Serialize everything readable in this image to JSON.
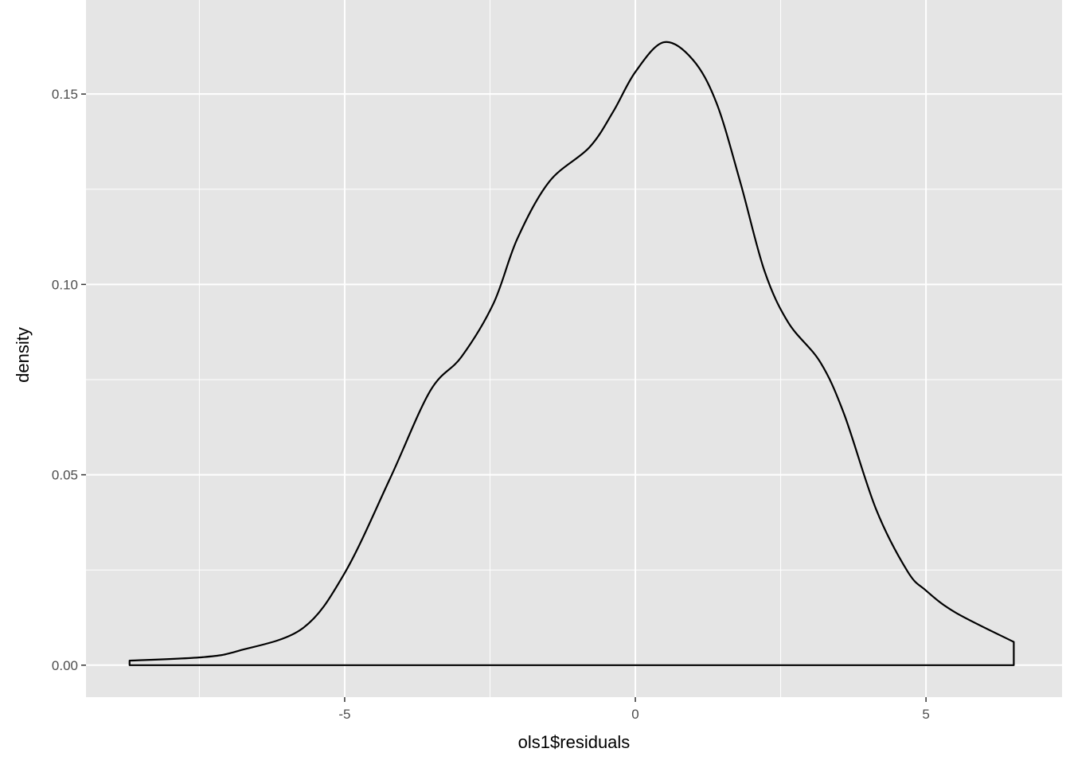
{
  "chart_data": {
    "type": "area",
    "geom": "density",
    "title": "",
    "xlabel": "ols1$residuals",
    "ylabel": "density",
    "xlim": [
      -9.45,
      7.34
    ],
    "ylim": [
      -0.0084,
      0.1747
    ],
    "grid": true,
    "x_ticks": [
      -5,
      0,
      5
    ],
    "x_tick_labels": [
      "-5",
      "0",
      "5"
    ],
    "x_minor_ticks": [
      -7.5,
      -2.5,
      2.5
    ],
    "y_ticks": [
      0,
      0.05,
      0.1,
      0.15
    ],
    "y_tick_labels": [
      "0.00",
      "0.05",
      "0.10",
      "0.15"
    ],
    "y_minor_ticks": [
      0.025,
      0.075,
      0.125
    ],
    "colors": {
      "panel": "#e5e5e5",
      "grid": "#ffffff",
      "line": "#000000",
      "fill": "none"
    },
    "x": [
      -8.7,
      -7.44,
      -6.82,
      -5.73,
      -5.0,
      -4.22,
      -3.53,
      -2.99,
      -2.44,
      -2.03,
      -1.48,
      -0.79,
      -0.38,
      0.0,
      0.49,
      0.99,
      1.4,
      1.81,
      2.22,
      2.63,
      3.18,
      3.59,
      4.14,
      4.68,
      5.0,
      5.51,
      6.51
    ],
    "y": [
      0.0012,
      0.0021,
      0.0038,
      0.0096,
      0.0242,
      0.049,
      0.072,
      0.081,
      0.095,
      0.112,
      0.127,
      0.136,
      0.1454,
      0.1558,
      0.1636,
      0.159,
      0.1475,
      0.1266,
      0.1036,
      0.09,
      0.0796,
      0.066,
      0.041,
      0.0247,
      0.0196,
      0.0138,
      0.0061
    ]
  }
}
